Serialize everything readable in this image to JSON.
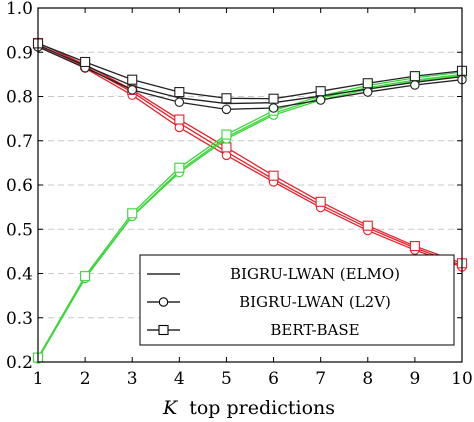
{
  "chart_data": {
    "type": "line",
    "xlabel_var": "K",
    "xlabel_rest": "top predictions",
    "x": [
      1,
      2,
      3,
      4,
      5,
      6,
      7,
      8,
      9,
      10
    ],
    "xlim": [
      1,
      10
    ],
    "ylim": [
      0.2,
      1.0
    ],
    "xticks": [
      1,
      2,
      3,
      4,
      5,
      6,
      7,
      8,
      9,
      10
    ],
    "yticks": [
      0.2,
      0.3,
      0.4,
      0.5,
      0.6,
      0.7,
      0.8,
      0.9,
      1.0
    ],
    "grid": "horizontal-dashed",
    "legend_position": "lower-right",
    "series": [
      {
        "name": "BIGRU-LWAN (ELMO)",
        "marker": "none",
        "metric": "precision",
        "color": "#e8202a",
        "values": [
          0.917,
          0.868,
          0.81,
          0.74,
          0.675,
          0.613,
          0.555,
          0.503,
          0.458,
          0.418
        ]
      },
      {
        "name": "BIGRU-LWAN (L2V)",
        "marker": "circle",
        "metric": "precision",
        "color": "#e8202a",
        "values": [
          0.913,
          0.864,
          0.803,
          0.73,
          0.667,
          0.607,
          0.549,
          0.497,
          0.453,
          0.415
        ]
      },
      {
        "name": "BERT-BASE",
        "marker": "square",
        "metric": "precision",
        "color": "#e8202a",
        "values": [
          0.921,
          0.872,
          0.815,
          0.748,
          0.685,
          0.621,
          0.562,
          0.508,
          0.462,
          0.423
        ]
      },
      {
        "name": "BIGRU-LWAN (ELMO)",
        "marker": "none",
        "metric": "recall",
        "color": "#3ad63a",
        "values": [
          0.207,
          0.39,
          0.53,
          0.632,
          0.708,
          0.762,
          0.797,
          0.82,
          0.837,
          0.85
        ]
      },
      {
        "name": "BIGRU-LWAN (L2V)",
        "marker": "circle",
        "metric": "recall",
        "color": "#3ad63a",
        "values": [
          0.207,
          0.389,
          0.529,
          0.628,
          0.704,
          0.758,
          0.792,
          0.816,
          0.834,
          0.847
        ]
      },
      {
        "name": "BERT-BASE",
        "marker": "square",
        "metric": "recall",
        "color": "#3ad63a",
        "values": [
          0.21,
          0.394,
          0.536,
          0.639,
          0.714,
          0.768,
          0.801,
          0.825,
          0.842,
          0.855
        ]
      },
      {
        "name": "BIGRU-LWAN (ELMO)",
        "marker": "none",
        "metric": "f1",
        "color": "#222222",
        "values": [
          0.916,
          0.87,
          0.824,
          0.797,
          0.784,
          0.786,
          0.801,
          0.817,
          0.832,
          0.845
        ]
      },
      {
        "name": "BIGRU-LWAN (L2V)",
        "marker": "circle",
        "metric": "f1",
        "color": "#222222",
        "values": [
          0.912,
          0.865,
          0.815,
          0.787,
          0.771,
          0.774,
          0.792,
          0.81,
          0.826,
          0.838
        ]
      },
      {
        "name": "BERT-BASE",
        "marker": "square",
        "metric": "f1",
        "color": "#222222",
        "values": [
          0.92,
          0.878,
          0.838,
          0.81,
          0.796,
          0.795,
          0.812,
          0.83,
          0.846,
          0.858
        ]
      }
    ],
    "legend": [
      {
        "label": "BIGRU-LWAN (ELMO)",
        "marker": "none"
      },
      {
        "label": "BIGRU-LWAN (L2V)",
        "marker": "circle"
      },
      {
        "label": "BERT-BASE",
        "marker": "square"
      }
    ]
  }
}
